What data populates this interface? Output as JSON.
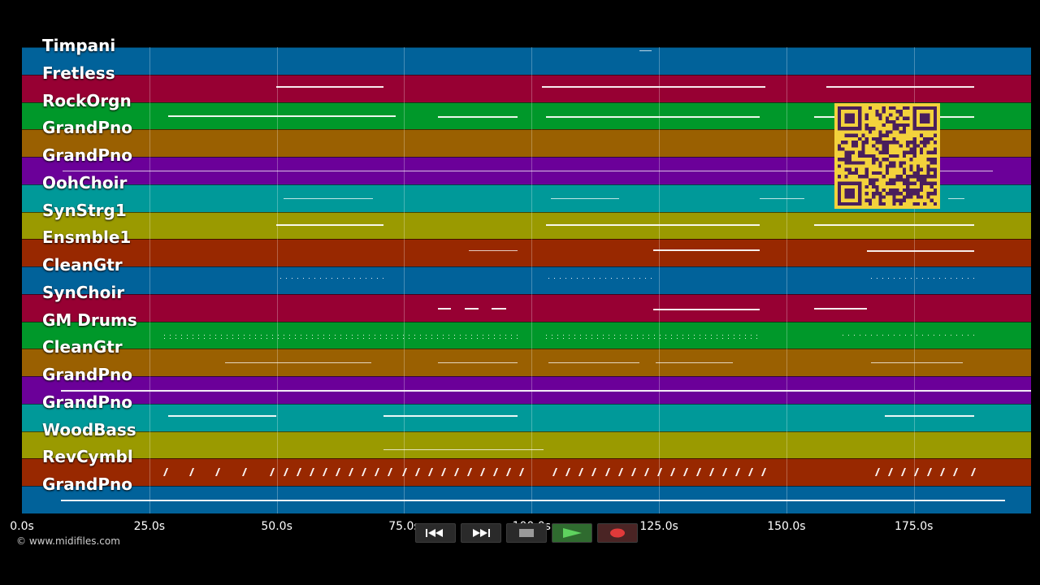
{
  "tracks": [
    {
      "name": "Timpani",
      "color": "#01629a"
    },
    {
      "name": "Fretless",
      "color": "#970033"
    },
    {
      "name": "RockOrgn",
      "color": "#00982a"
    },
    {
      "name": "GrandPno",
      "color": "#9a6001"
    },
    {
      "name": "GrandPno",
      "color": "#6b0099"
    },
    {
      "name": "OohChoir",
      "color": "#009999"
    },
    {
      "name": "SynStrg1",
      "color": "#9a9a00"
    },
    {
      "name": "Ensmble1",
      "color": "#982800"
    },
    {
      "name": "CleanGtr",
      "color": "#01629a"
    },
    {
      "name": "SynChoir",
      "color": "#970033"
    },
    {
      "name": "GM Drums",
      "color": "#00982a"
    },
    {
      "name": "CleanGtr",
      "color": "#9a6001"
    },
    {
      "name": "GrandPno",
      "color": "#6b0099"
    },
    {
      "name": "GrandPno",
      "color": "#009999"
    },
    {
      "name": "WoodBass",
      "color": "#9a9a00"
    },
    {
      "name": "RevCymbl",
      "color": "#982800"
    },
    {
      "name": "GrandPno",
      "color": "#01629a"
    }
  ],
  "timeline": {
    "max_seconds": 198,
    "ticks": [
      "0.0s",
      "25.0s",
      "50.0s",
      "75.0s",
      "100.0s",
      "125.0s",
      "150.0s",
      "175.0s"
    ],
    "tick_values": [
      0,
      25,
      50,
      75,
      100,
      125,
      150,
      175
    ]
  },
  "copyright": "© www.midifiles.com",
  "controls": [
    {
      "name": "rewind-button",
      "icon": "rewind-icon"
    },
    {
      "name": "fast-forward-button",
      "icon": "fast-forward-icon"
    },
    {
      "name": "stop-button",
      "icon": "stop-icon"
    },
    {
      "name": "play-button",
      "icon": "play-icon"
    },
    {
      "name": "record-button",
      "icon": "record-icon"
    }
  ],
  "qr_code": {
    "icon": "qr-code-icon",
    "color": "#f3d23c",
    "module_color": "#4a1f5c"
  }
}
